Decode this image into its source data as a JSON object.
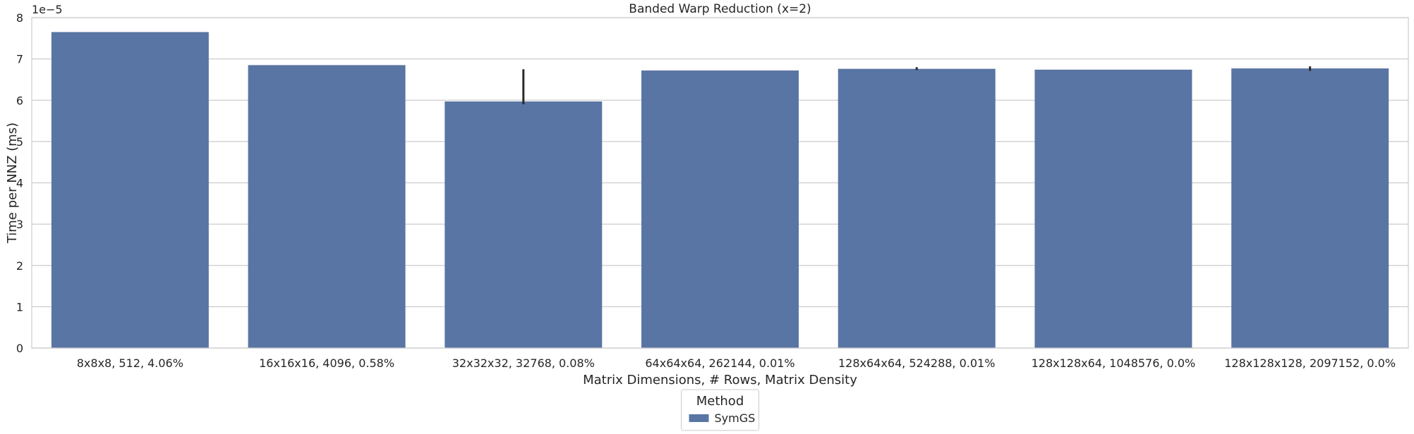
{
  "chart_data": {
    "type": "bar",
    "title": "Banded Warp Reduction (x=2)",
    "xlabel": "Matrix Dimensions, # Rows, Matrix Density",
    "ylabel": "Time per NNZ (ms)",
    "y_offset_label": "1e−5",
    "ylim": [
      0,
      8
    ],
    "y_ticks": [
      "0",
      "1",
      "2",
      "3",
      "4",
      "5",
      "6",
      "7",
      "8"
    ],
    "y_scale_note": "values in units of 1e-5 ms",
    "grid": "horizontal",
    "categories": [
      "8x8x8, 512, 4.06%",
      "16x16x16, 4096, 0.58%",
      "32x32x32, 32768, 0.08%",
      "64x64x64, 262144, 0.01%",
      "128x64x64, 524288, 0.01%",
      "128x128x64, 1048576, 0.0%",
      "128x128x128, 2097152, 0.0%"
    ],
    "series": [
      {
        "name": "SymGS",
        "color": "#5975a4",
        "values": [
          7.65,
          6.85,
          5.97,
          6.72,
          6.76,
          6.74,
          6.77
        ],
        "error_low": [
          null,
          null,
          5.9,
          null,
          6.73,
          null,
          6.71
        ],
        "error_high": [
          null,
          null,
          6.75,
          null,
          6.8,
          null,
          6.82
        ]
      }
    ],
    "legend": {
      "title": "Method",
      "placement": "bottom-center",
      "entries": [
        "SymGS"
      ]
    }
  }
}
